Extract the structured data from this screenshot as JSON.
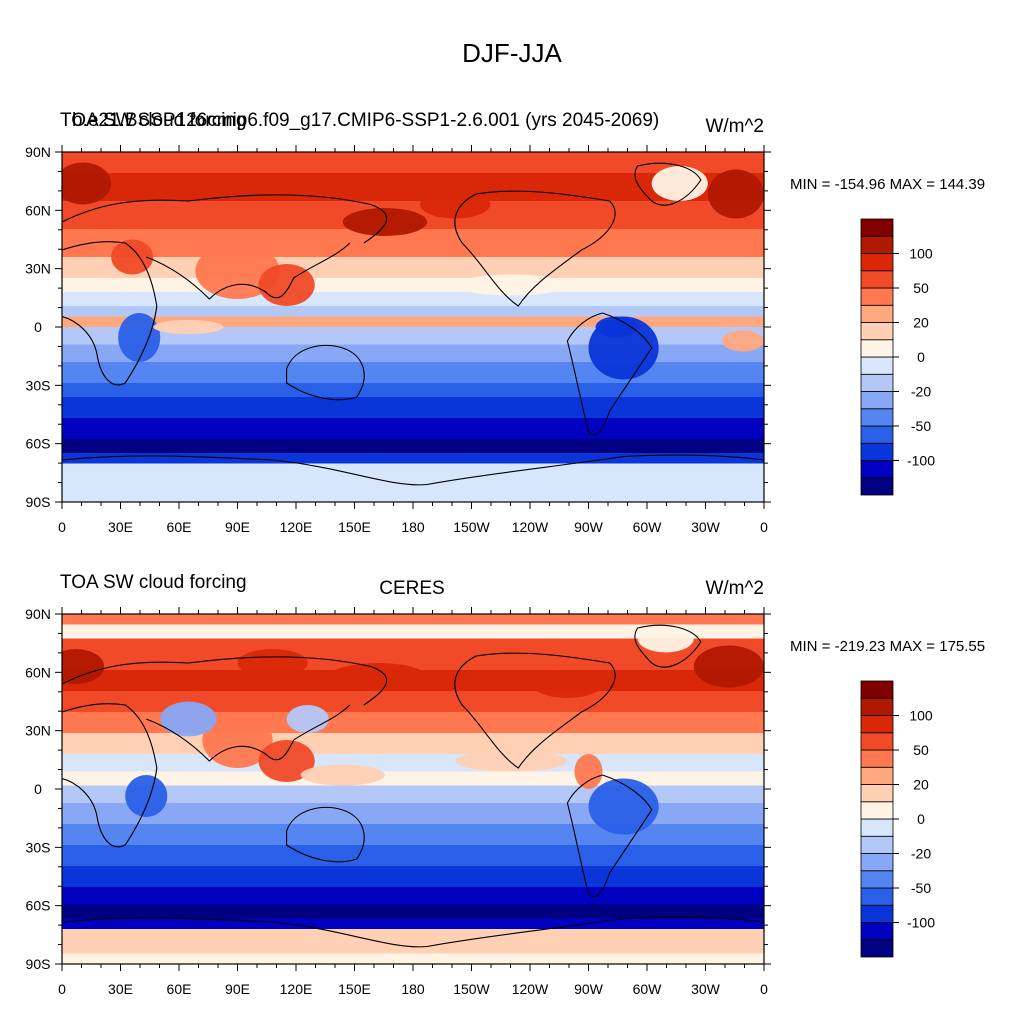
{
  "title": "DJF-JJA",
  "colorbar": {
    "colors": [
      "#000080",
      "#0000c0",
      "#0a35d8",
      "#2a60e8",
      "#5585f0",
      "#88a8f5",
      "#b4c8f8",
      "#d8e6fb",
      "#fff3e6",
      "#ffd0b4",
      "#ffa880",
      "#ff7850",
      "#f04a28",
      "#d82808",
      "#b01800",
      "#800000"
    ],
    "labels": [
      "-100",
      "-50",
      "-20",
      "0",
      "20",
      "50",
      "100"
    ]
  },
  "axes": {
    "x_ticks": [
      "0",
      "30E",
      "60E",
      "90E",
      "120E",
      "150E",
      "180",
      "150W",
      "120W",
      "90W",
      "60W",
      "30W",
      "0"
    ],
    "y_ticks": [
      "90N",
      "60N",
      "30N",
      "0",
      "30S",
      "60S",
      "90S"
    ]
  },
  "panels": [
    {
      "left_label": "TOA SW cloud forcing",
      "overlay_label": "b.e21.BSSP126cmip6.f09_g17.CMIP6-SSP1-2.6.001 (yrs 2045-2069)",
      "right_label": "W/m^2",
      "min_max": "MIN = -154.96 MAX = 144.39"
    },
    {
      "left_label": "TOA SW cloud forcing",
      "center_label": "CERES",
      "right_label": "W/m^2",
      "min_max": "MIN = -219.23 MAX = 175.55"
    }
  ]
}
